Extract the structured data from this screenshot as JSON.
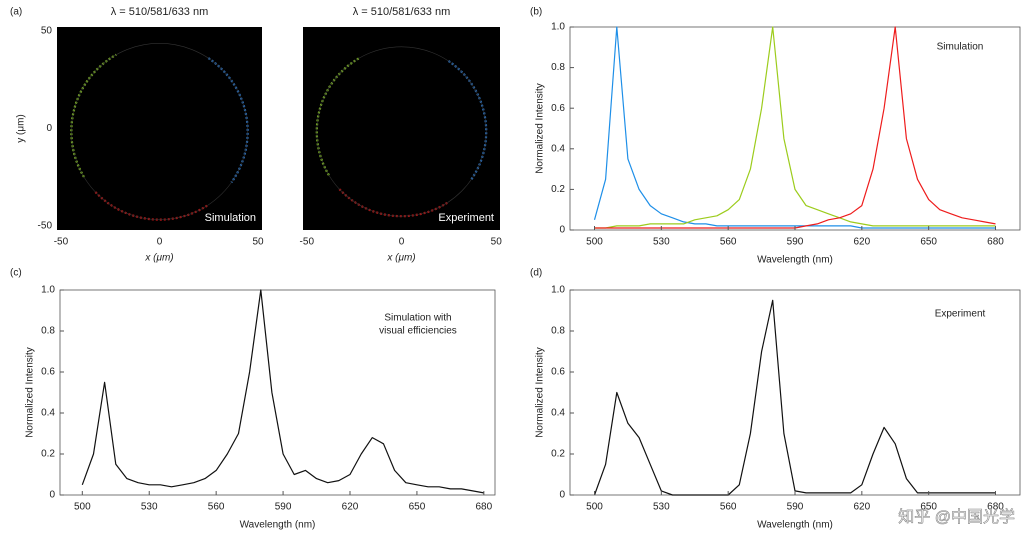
{
  "chart_data": [
    {
      "type": "image",
      "panel": "(a)",
      "title": "λ = 510/581/633 nm",
      "label": "Simulation",
      "xlabel": "x (μm)",
      "ylabel": "y (μm)",
      "xlim": [
        -52,
        52
      ],
      "ylim": [
        -52,
        52
      ],
      "xticks": [
        -50,
        0,
        50
      ],
      "yticks": [
        -50,
        0,
        50
      ]
    },
    {
      "type": "image",
      "title": "λ = 510/581/633 nm",
      "label": "Experiment",
      "xlabel": "x (μm)",
      "xlim": [
        -52,
        52
      ],
      "ylim": [
        -52,
        52
      ],
      "xticks": [
        -50,
        0,
        50
      ]
    },
    {
      "type": "line",
      "panel": "(b)",
      "annotation": [
        "Simulation"
      ],
      "xlabel": "Wavelength (nm)",
      "ylabel": "Normalized Intensity",
      "xlim": [
        489,
        691
      ],
      "ylim": [
        0,
        1
      ],
      "xticks": [
        500,
        530,
        560,
        590,
        620,
        650,
        680
      ],
      "yticks": [
        0,
        0.2,
        0.4,
        0.6,
        0.8,
        {
          "value": 1,
          "label": "1.0"
        }
      ],
      "x": [
        500,
        505,
        510,
        515,
        520,
        525,
        530,
        535,
        540,
        545,
        550,
        555,
        560,
        565,
        570,
        575,
        580,
        585,
        590,
        595,
        600,
        605,
        610,
        615,
        620,
        625,
        630,
        635,
        640,
        645,
        650,
        655,
        660,
        665,
        670,
        675,
        680
      ],
      "series": [
        {
          "color": "#1e8fe8",
          "values": [
            0.05,
            0.25,
            1.0,
            0.35,
            0.2,
            0.12,
            0.08,
            0.06,
            0.04,
            0.03,
            0.03,
            0.02,
            0.02,
            0.02,
            0.02,
            0.02,
            0.02,
            0.02,
            0.02,
            0.02,
            0.02,
            0.02,
            0.02,
            0.02,
            0.01,
            0.01,
            0.01,
            0.01,
            0.01,
            0.01,
            0.01,
            0.01,
            0.01,
            0.01,
            0.01,
            0.01,
            0.01
          ]
        },
        {
          "color": "#9ccc1c",
          "values": [
            0.01,
            0.01,
            0.02,
            0.02,
            0.02,
            0.03,
            0.03,
            0.03,
            0.03,
            0.05,
            0.06,
            0.07,
            0.1,
            0.15,
            0.3,
            0.6,
            1.0,
            0.45,
            0.2,
            0.12,
            0.1,
            0.08,
            0.06,
            0.04,
            0.03,
            0.02,
            0.02,
            0.02,
            0.02,
            0.02,
            0.02,
            0.02,
            0.02,
            0.02,
            0.02,
            0.02,
            0.02
          ]
        },
        {
          "color": "#ee1c1c",
          "values": [
            0.01,
            0.01,
            0.01,
            0.01,
            0.01,
            0.01,
            0.01,
            0.01,
            0.01,
            0.01,
            0.01,
            0.01,
            0.01,
            0.01,
            0.01,
            0.01,
            0.01,
            0.01,
            0.01,
            0.02,
            0.03,
            0.05,
            0.06,
            0.08,
            0.12,
            0.3,
            0.6,
            1.0,
            0.45,
            0.25,
            0.15,
            0.1,
            0.08,
            0.06,
            0.05,
            0.04,
            0.03
          ]
        }
      ]
    },
    {
      "type": "line",
      "panel": "(c)",
      "annotation": [
        "Simulation with",
        "visual efficiencies"
      ],
      "xlabel": "Wavelength (nm)",
      "ylabel": "Normalized Intensity",
      "xlim": [
        490,
        685
      ],
      "ylim": [
        0,
        1
      ],
      "xticks": [
        500,
        530,
        560,
        590,
        620,
        650,
        680
      ],
      "yticks": [
        0,
        0.2,
        0.4,
        0.6,
        0.8,
        {
          "value": 1,
          "label": "1.0"
        }
      ],
      "color": "#111111",
      "x": [
        500,
        505,
        510,
        515,
        520,
        525,
        530,
        535,
        540,
        545,
        550,
        555,
        560,
        565,
        570,
        575,
        580,
        585,
        590,
        595,
        600,
        605,
        610,
        615,
        620,
        625,
        630,
        635,
        640,
        645,
        650,
        655,
        660,
        665,
        670,
        675,
        680
      ],
      "values": [
        0.05,
        0.2,
        0.55,
        0.15,
        0.08,
        0.06,
        0.05,
        0.05,
        0.04,
        0.05,
        0.06,
        0.08,
        0.12,
        0.2,
        0.3,
        0.6,
        1.0,
        0.5,
        0.2,
        0.1,
        0.12,
        0.08,
        0.06,
        0.07,
        0.1,
        0.2,
        0.28,
        0.25,
        0.12,
        0.06,
        0.05,
        0.04,
        0.04,
        0.03,
        0.03,
        0.02,
        0.01
      ]
    },
    {
      "type": "line",
      "panel": "(d)",
      "annotation": [
        "Experiment"
      ],
      "xlabel": "Wavelength (nm)",
      "ylabel": "Normalized Intensity",
      "xlim": [
        489,
        691
      ],
      "ylim": [
        0,
        1
      ],
      "xticks": [
        500,
        530,
        560,
        590,
        620,
        650,
        680
      ],
      "yticks": [
        0,
        0.2,
        0.4,
        0.6,
        0.8,
        {
          "value": 1,
          "label": "1.0"
        }
      ],
      "color": "#111111",
      "x": [
        500,
        505,
        510,
        515,
        520,
        525,
        530,
        535,
        540,
        545,
        550,
        555,
        560,
        565,
        570,
        575,
        580,
        585,
        590,
        595,
        600,
        605,
        610,
        615,
        620,
        625,
        630,
        635,
        640,
        645,
        650,
        655,
        660,
        665,
        670,
        675,
        680
      ],
      "values": [
        0,
        0.15,
        0.5,
        0.35,
        0.28,
        0.15,
        0.02,
        0,
        0,
        0,
        0,
        0,
        0,
        0.05,
        0.3,
        0.7,
        0.95,
        0.3,
        0.02,
        0.01,
        0.01,
        0.01,
        0.01,
        0.01,
        0.05,
        0.2,
        0.33,
        0.25,
        0.08,
        0.01,
        0.01,
        0.01,
        0.01,
        0.01,
        0.01,
        0.01,
        0.01
      ]
    }
  ],
  "watermark": "知乎 @中国光学"
}
